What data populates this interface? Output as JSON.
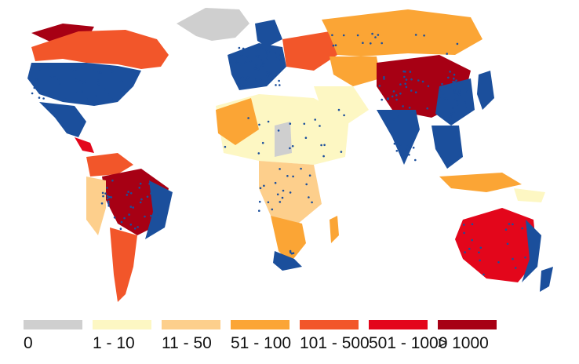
{
  "legend": {
    "bins": [
      {
        "label": "0",
        "color": "#cfcfcf"
      },
      {
        "label": "1 - 10",
        "color": "#fdf7c3"
      },
      {
        "label": "11 - 50",
        "color": "#fdcf8c"
      },
      {
        "label": "51 - 100",
        "color": "#fba535"
      },
      {
        "label": "101 - 500",
        "color": "#f2562a"
      },
      {
        "label": "501 - 1000",
        "color": "#e3061b"
      },
      {
        "label": "> 1000",
        "color": "#a70014"
      }
    ]
  },
  "map": {
    "point_color": "#1b4f9c",
    "ocean_color": "#ffffff",
    "border_color": "#ffffff"
  }
}
